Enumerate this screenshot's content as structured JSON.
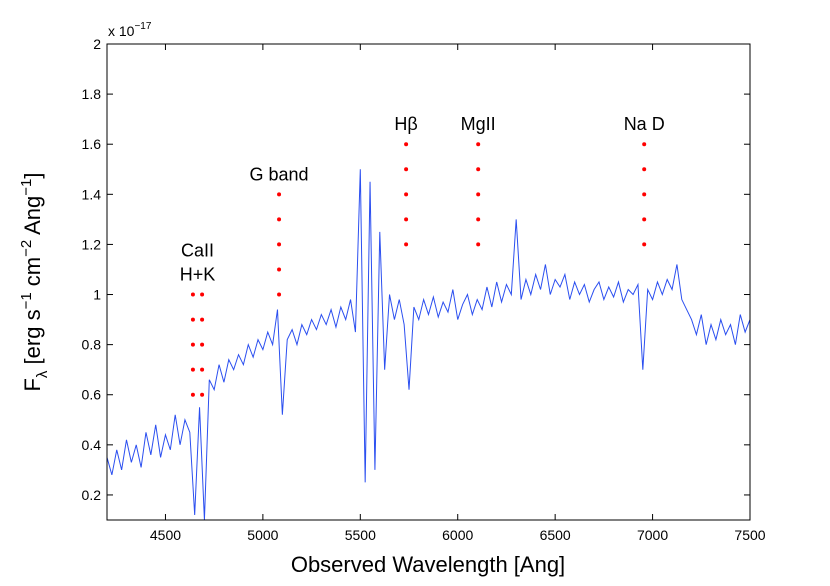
{
  "chart_data": {
    "type": "line",
    "xlabel": "Observed Wavelength [Ang]",
    "ylabel_parts": [
      {
        "text": "F",
        "shift": "base"
      },
      {
        "text": "λ",
        "shift": "sub"
      },
      {
        "text": " [erg s",
        "shift": "base"
      },
      {
        "text": "−1",
        "shift": "sup"
      },
      {
        "text": " cm",
        "shift": "base"
      },
      {
        "text": "−2",
        "shift": "sup"
      },
      {
        "text": " Ang",
        "shift": "base"
      },
      {
        "text": "−1",
        "shift": "sup"
      },
      {
        "text": "]",
        "shift": "base"
      }
    ],
    "axis_multiplier": "x 10",
    "axis_multiplier_exponent": "−17",
    "xlim": [
      4200,
      7500
    ],
    "xticks": [
      4500,
      5000,
      5500,
      6000,
      6500,
      7000,
      7500
    ],
    "ylim": [
      0.1,
      2
    ],
    "yticks": [
      0.2,
      0.4,
      0.6,
      0.8,
      1,
      1.2,
      1.4,
      1.6,
      1.8,
      2
    ],
    "grid": false,
    "series": [
      {
        "color": "#2b4ff0",
        "x": [
          4200,
          4225,
          4250,
          4275,
          4300,
          4325,
          4350,
          4375,
          4400,
          4425,
          4450,
          4475,
          4500,
          4525,
          4550,
          4575,
          4600,
          4625,
          4650,
          4675,
          4700,
          4725,
          4750,
          4775,
          4800,
          4825,
          4850,
          4875,
          4900,
          4925,
          4950,
          4975,
          5000,
          5025,
          5050,
          5075,
          5100,
          5125,
          5150,
          5175,
          5200,
          5225,
          5250,
          5275,
          5300,
          5325,
          5350,
          5375,
          5400,
          5425,
          5450,
          5475,
          5500,
          5525,
          5550,
          5575,
          5600,
          5625,
          5650,
          5675,
          5700,
          5725,
          5750,
          5775,
          5800,
          5825,
          5850,
          5875,
          5900,
          5925,
          5950,
          5975,
          6000,
          6025,
          6050,
          6075,
          6100,
          6125,
          6150,
          6175,
          6200,
          6225,
          6250,
          6275,
          6300,
          6325,
          6350,
          6375,
          6400,
          6425,
          6450,
          6475,
          6500,
          6525,
          6550,
          6575,
          6600,
          6625,
          6650,
          6675,
          6700,
          6725,
          6750,
          6775,
          6800,
          6825,
          6850,
          6875,
          6900,
          6925,
          6950,
          6975,
          7000,
          7025,
          7050,
          7075,
          7100,
          7125,
          7150,
          7175,
          7200,
          7225,
          7250,
          7275,
          7300,
          7325,
          7350,
          7375,
          7400,
          7425,
          7450,
          7475,
          7500
        ],
        "values": [
          0.35,
          0.28,
          0.38,
          0.3,
          0.42,
          0.33,
          0.4,
          0.31,
          0.45,
          0.36,
          0.48,
          0.35,
          0.44,
          0.38,
          0.52,
          0.4,
          0.5,
          0.45,
          0.12,
          0.55,
          0.1,
          0.66,
          0.62,
          0.72,
          0.65,
          0.74,
          0.7,
          0.76,
          0.72,
          0.8,
          0.75,
          0.82,
          0.78,
          0.85,
          0.8,
          0.94,
          0.52,
          0.82,
          0.86,
          0.8,
          0.88,
          0.84,
          0.9,
          0.86,
          0.92,
          0.88,
          0.94,
          0.87,
          0.95,
          0.9,
          0.98,
          0.85,
          1.5,
          0.25,
          1.45,
          0.3,
          1.25,
          0.7,
          1.0,
          0.9,
          0.98,
          0.88,
          0.62,
          0.95,
          0.9,
          0.98,
          0.92,
          0.99,
          0.91,
          0.97,
          0.93,
          1.02,
          0.9,
          0.96,
          1.0,
          0.92,
          0.98,
          0.94,
          1.03,
          0.95,
          1.05,
          0.97,
          1.04,
          1.0,
          1.3,
          0.98,
          1.06,
          1.0,
          1.08,
          1.02,
          1.12,
          1.0,
          1.06,
          1.03,
          1.08,
          0.98,
          1.05,
          1.0,
          1.04,
          0.97,
          1.02,
          1.05,
          0.98,
          1.03,
          0.99,
          1.05,
          0.97,
          1.02,
          1.0,
          1.04,
          0.7,
          1.02,
          0.98,
          1.05,
          1.0,
          1.06,
          1.02,
          1.12,
          0.98,
          0.94,
          0.9,
          0.84,
          0.92,
          0.8,
          0.88,
          0.82,
          0.9,
          0.84,
          0.88,
          0.8,
          0.92,
          0.85,
          0.9
        ]
      }
    ],
    "annotations": [
      {
        "label": [
          "CaII",
          "H+K"
        ],
        "x": [
          4641,
          4688
        ],
        "dots": [
          0.6,
          0.7,
          0.8,
          0.9,
          1.0
        ],
        "color": "#ff0000"
      },
      {
        "label": [
          "G band"
        ],
        "x": [
          5083
        ],
        "dots": [
          1.0,
          1.1,
          1.2,
          1.3,
          1.4
        ],
        "color": "#ff0000"
      },
      {
        "label": [
          "Hβ"
        ],
        "x": [
          5735
        ],
        "dots": [
          1.2,
          1.3,
          1.4,
          1.5,
          1.6
        ],
        "color": "#ff0000"
      },
      {
        "label": [
          "MgII"
        ],
        "x": [
          6105
        ],
        "dots": [
          1.2,
          1.3,
          1.4,
          1.5,
          1.6
        ],
        "color": "#ff0000"
      },
      {
        "label": [
          "Na D"
        ],
        "x": [
          6957
        ],
        "dots": [
          1.2,
          1.3,
          1.4,
          1.5,
          1.6
        ],
        "color": "#ff0000"
      }
    ]
  }
}
